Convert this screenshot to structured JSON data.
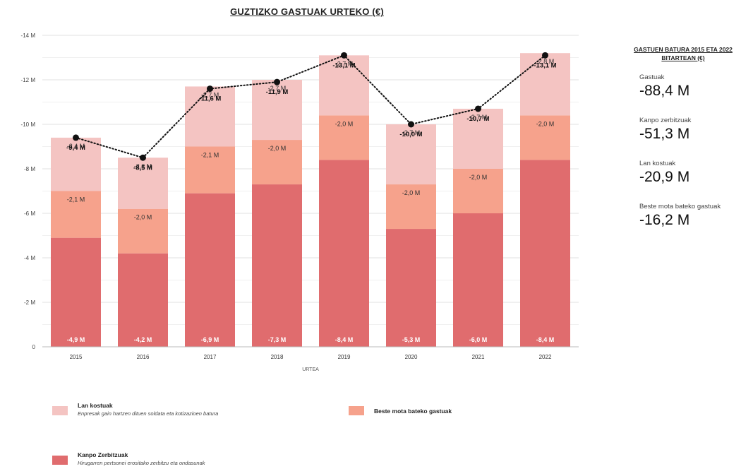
{
  "colors": {
    "kanpo": "#e06c6e",
    "beste": "#f6a28c",
    "lan": "#f4c4c2",
    "grid": "#e2e2e2",
    "axis": "#bbbbbb",
    "total_line": "#111111"
  },
  "chart_data": {
    "type": "bar",
    "stacked": true,
    "title": "GUZTIZKO GASTUAK URTEKO (€)",
    "xlabel": "URTEA",
    "ylabel": "",
    "ylim": [
      0,
      14
    ],
    "yticks": [
      {
        "value": 0,
        "label": "0"
      },
      {
        "value": 2,
        "label": "-2 M"
      },
      {
        "value": 4,
        "label": "-4 M"
      },
      {
        "value": 6,
        "label": "-6 M"
      },
      {
        "value": 8,
        "label": "-8 M"
      },
      {
        "value": 10,
        "label": "-10 M"
      },
      {
        "value": 12,
        "label": "-12 M"
      },
      {
        "value": 14,
        "label": "-14 M"
      }
    ],
    "grid": true,
    "legend_position": "bottom",
    "categories": [
      "2015",
      "2016",
      "2017",
      "2018",
      "2019",
      "2020",
      "2021",
      "2022"
    ],
    "series": [
      {
        "name": "Kanpo Zerbitzuak",
        "color_key": "kanpo",
        "values": [
          4.9,
          4.2,
          6.9,
          7.3,
          8.4,
          5.3,
          6.0,
          8.4
        ],
        "labels": [
          "-4,9 M",
          "-4,2 M",
          "-6,9 M",
          "-7,3 M",
          "-8,4 M",
          "-5,3 M",
          "-6,0 M",
          "-8,4 M"
        ]
      },
      {
        "name": "Beste mota bateko gastuak",
        "color_key": "beste",
        "values": [
          2.1,
          2.0,
          2.1,
          2.0,
          2.0,
          2.0,
          2.0,
          2.0
        ],
        "labels": [
          "-2,1 M",
          "-2,0 M",
          "-2,1 M",
          "-2,0 M",
          "-2,0 M",
          "-2,0 M",
          "-2,0 M",
          "-2,0 M"
        ]
      },
      {
        "name": "Lan kostuak",
        "color_key": "lan",
        "values": [
          2.4,
          2.3,
          2.7,
          2.7,
          2.7,
          2.7,
          2.7,
          2.8
        ],
        "labels": [
          "-2,4 M",
          "-2,3 M",
          "-2,7 M",
          "-2,7 M",
          "-2,7 M",
          "-2,7 M",
          "-2,7 M",
          "-2,8 M"
        ]
      }
    ],
    "totals": {
      "type": "line",
      "style": "dotted",
      "values": [
        9.4,
        8.5,
        11.6,
        11.9,
        13.1,
        10.0,
        10.7,
        13.1
      ],
      "labels": [
        "-9,4 M",
        "-8,5 M",
        "-11,6 M",
        "-11,9 M",
        "-13,1 M",
        "-10,0 M",
        "-10,7 M",
        "-13,1 M"
      ]
    }
  },
  "legend": {
    "lan": {
      "title": "Lan kostuak",
      "desc": "Enpresak gain hartzen dituen soldata eta kotizazioen batura"
    },
    "beste": {
      "title": "Beste mota bateko gastuak"
    },
    "kanpo": {
      "title": "Kanpo Zerbitzuak",
      "desc": "Hirugarren pertsonei erositako zerbitzu eta ondasunak"
    }
  },
  "summary": {
    "title": "GASTUEN BATURA 2015 ETA 2022 BITARTEAN (€)",
    "items": [
      {
        "label": "Gastuak",
        "value": "-88,4 M"
      },
      {
        "label": "Kanpo zerbitzuak",
        "value": "-51,3 M"
      },
      {
        "label": "Lan kostuak",
        "value": "-20,9 M"
      },
      {
        "label": "Beste mota bateko gastuak",
        "value": "-16,2 M"
      }
    ]
  }
}
